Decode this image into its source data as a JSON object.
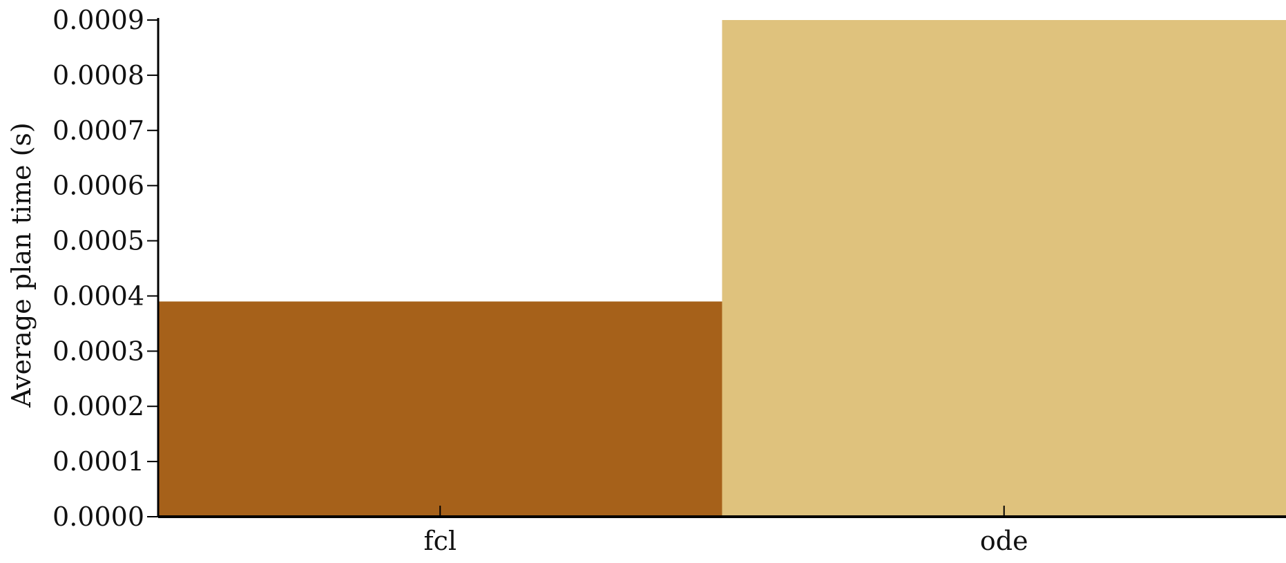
{
  "chart_data": {
    "type": "bar",
    "categories": [
      "fcl",
      "ode"
    ],
    "values": [
      0.00039,
      0.0009
    ],
    "colors": [
      "#a6611a",
      "#dfc27d"
    ],
    "title": "",
    "xlabel": "",
    "ylabel": "Average plan time (s)",
    "ylim": [
      0,
      0.0009
    ],
    "yticks": [
      "0.0000",
      "0.0001",
      "0.0002",
      "0.0003",
      "0.0004",
      "0.0005",
      "0.0006",
      "0.0007",
      "0.0008",
      "0.0009"
    ],
    "grid": false,
    "legend": "none"
  }
}
